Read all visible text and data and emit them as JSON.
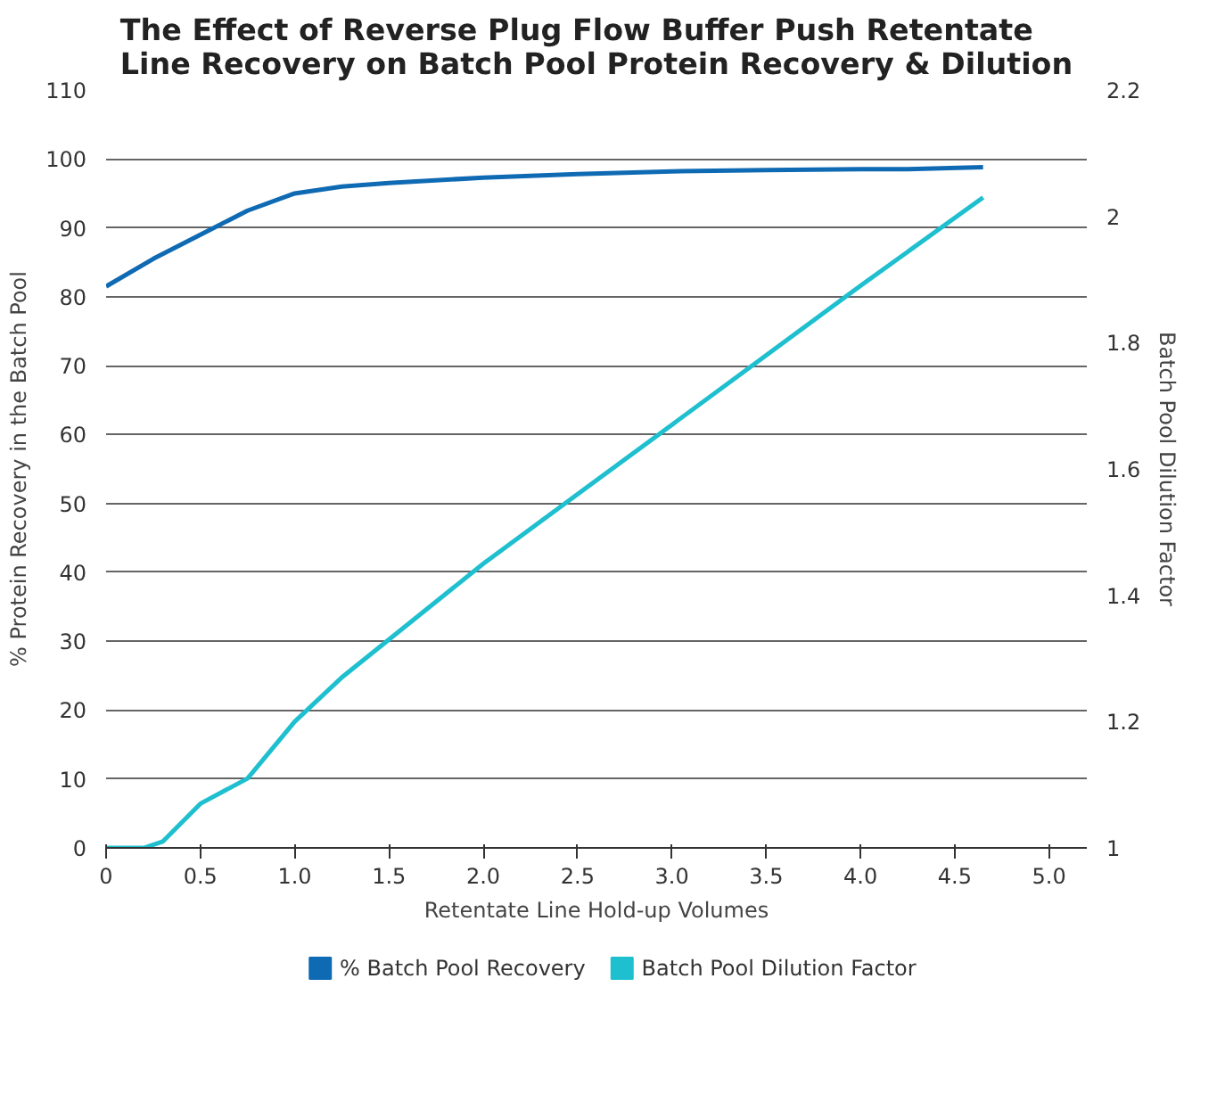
{
  "chart_data": {
    "type": "line",
    "title": "The Effect of Reverse Plug Flow Buffer Push Retentate Line Recovery on Batch Pool Protein Recovery & Dilution",
    "xlabel": "Retentate Line Hold-up Volumes",
    "ylabel": "% Protein Recovery in the Batch Pool",
    "y2label": "Batch Pool Dilution Factor",
    "series": [
      {
        "name": "% Batch Pool Recovery",
        "color": "#0f6ab4",
        "x": [
          0,
          0.25,
          0.5,
          0.75,
          1.0,
          1.25,
          1.5,
          2.0,
          2.5,
          3.0,
          3.5,
          4.0,
          4.25,
          4.65
        ],
        "values": [
          81.5,
          85.5,
          89,
          92.5,
          95,
          96,
          96.5,
          97.3,
          97.8,
          98.2,
          98.4,
          98.5,
          98.5,
          98.8
        ]
      },
      {
        "name": "Batch Pool Dilution Factor",
        "color": "#1ebfcf",
        "axis": "y2",
        "x": [
          0,
          0.2,
          0.3,
          0.5,
          0.75,
          1.0,
          1.25,
          1.5,
          2.0,
          2.5,
          3.0,
          3.5,
          4.0,
          4.65
        ],
        "values": [
          1.0,
          1.0,
          1.01,
          1.07,
          1.11,
          1.2,
          1.27,
          1.33,
          1.45,
          1.56,
          1.67,
          1.78,
          1.89,
          2.03
        ]
      }
    ],
    "xlim": [
      0,
      5.2
    ],
    "xticks": [
      0,
      {
        "value": 0.5,
        "label": "0.5"
      },
      {
        "value": 1,
        "label": "1.0"
      },
      {
        "value": 1.5,
        "label": "1.5"
      },
      {
        "value": 2,
        "label": "2.0"
      },
      {
        "value": 2.5,
        "label": "2.5"
      },
      {
        "value": 3,
        "label": "3.0"
      },
      {
        "value": 3.5,
        "label": "3.5"
      },
      {
        "value": 4,
        "label": "4.0"
      },
      {
        "value": 4.5,
        "label": "4.5"
      },
      {
        "value": 5,
        "label": "5.0"
      }
    ],
    "ylim": [
      0,
      110
    ],
    "yticks": [
      0,
      10,
      20,
      30,
      40,
      50,
      60,
      70,
      80,
      90,
      100,
      110
    ],
    "y2lim": [
      1,
      2.2
    ],
    "y2ticks": [
      1,
      1.2,
      1.4,
      1.6,
      1.8,
      2,
      2.2
    ],
    "grid": "y",
    "legend": "bottom",
    "marker": "none",
    "line_style": "solid"
  }
}
